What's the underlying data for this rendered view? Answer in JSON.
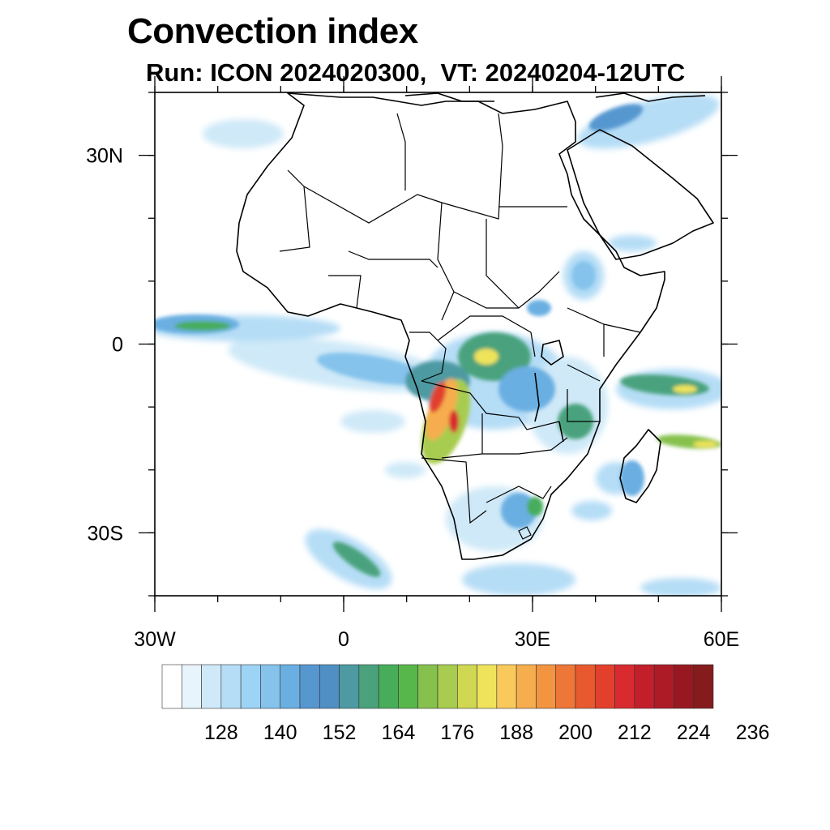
{
  "title": "Convection index",
  "subtitle": "Run: ICON 2024020300,  VT: 20240204-12UTC",
  "map": {
    "lon_range": [
      -30,
      60
    ],
    "lat_range": [
      -40,
      40
    ],
    "lon_ticks": [
      {
        "value": -30,
        "label": "30W"
      },
      {
        "value": 0,
        "label": "0"
      },
      {
        "value": 30,
        "label": "30E"
      },
      {
        "value": 60,
        "label": "60E"
      }
    ],
    "lat_ticks": [
      {
        "value": 30,
        "label": "30N"
      },
      {
        "value": 0,
        "label": "0"
      },
      {
        "value": -30,
        "label": "30S"
      }
    ],
    "minor_lon_step": 10,
    "minor_lat_step": 10
  },
  "colorbar": {
    "colors": [
      "#ffffff",
      "#e8f4fb",
      "#cfe9f8",
      "#b5ddf6",
      "#9dd3f4",
      "#85c3ec",
      "#6aafe2",
      "#5797d0",
      "#4f8fc4",
      "#4d9aa2",
      "#4aa27d",
      "#47ad5b",
      "#58b74a",
      "#86c14d",
      "#a8cc4f",
      "#d0d852",
      "#eee35a",
      "#f9c95c",
      "#f6ad4d",
      "#f39440",
      "#ee7636",
      "#e85a2e",
      "#e23f2d",
      "#d82a2f",
      "#c21f2b",
      "#ad1b27",
      "#981822",
      "#841b1d"
    ],
    "labels": [
      "128",
      "140",
      "152",
      "164",
      "176",
      "188",
      "200",
      "212",
      "224",
      "236"
    ]
  }
}
